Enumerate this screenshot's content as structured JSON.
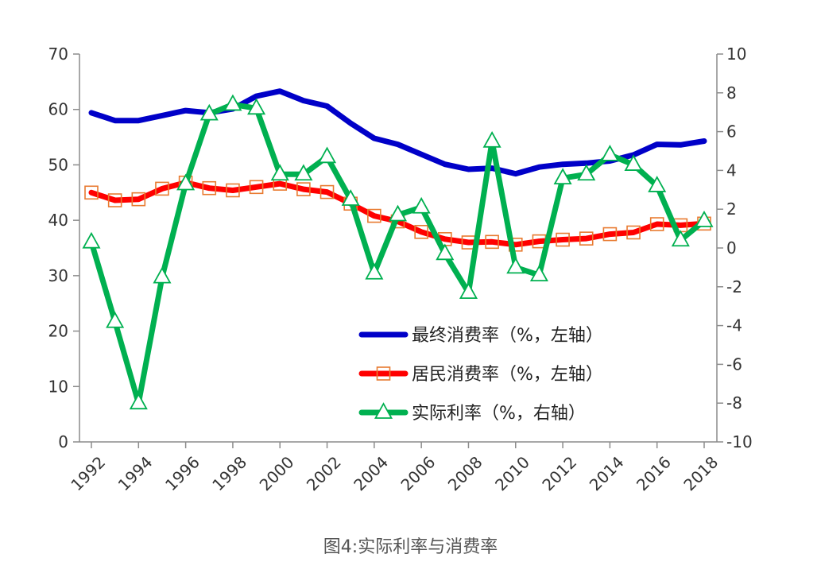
{
  "caption": "图4:实际利率与消费率",
  "chart_data": {
    "type": "line",
    "x": [
      1992,
      1993,
      1994,
      1995,
      1996,
      1997,
      1998,
      1999,
      2000,
      2001,
      2002,
      2003,
      2004,
      2005,
      2006,
      2007,
      2008,
      2009,
      2010,
      2011,
      2012,
      2013,
      2014,
      2015,
      2016,
      2017,
      2018
    ],
    "x_tick_labels": [
      "1992",
      "1994",
      "1996",
      "1998",
      "2000",
      "2002",
      "2004",
      "2006",
      "2008",
      "2010",
      "2012",
      "2014",
      "2016",
      "2018"
    ],
    "y_left": {
      "min": 0,
      "max": 70,
      "ticks": [
        "0",
        "10",
        "20",
        "30",
        "40",
        "50",
        "60",
        "70"
      ]
    },
    "y_right": {
      "min": -10,
      "max": 10,
      "ticks": [
        "-10",
        "-8",
        "-6",
        "-4",
        "-2",
        "0",
        "2",
        "4",
        "6",
        "8",
        "10"
      ]
    },
    "series": [
      {
        "name": "最终消费率（%，左轴）",
        "axis": "left",
        "color": "#0000c8",
        "marker": "none",
        "values": [
          59.4,
          58.0,
          58.0,
          58.9,
          59.8,
          59.4,
          60.1,
          62.4,
          63.3,
          61.6,
          60.6,
          57.5,
          54.8,
          53.7,
          51.9,
          50.1,
          49.2,
          49.4,
          48.4,
          49.6,
          50.1,
          50.3,
          50.7,
          51.8,
          53.7,
          53.6,
          54.3
        ]
      },
      {
        "name": "居民消费率（%，左轴）",
        "axis": "left",
        "color": "#ff0000",
        "marker": "square",
        "marker_color": "#e87a30",
        "values": [
          45.0,
          43.6,
          43.8,
          45.7,
          46.8,
          45.8,
          45.4,
          46.0,
          46.6,
          45.6,
          45.1,
          43.0,
          40.8,
          39.8,
          37.9,
          36.6,
          36.0,
          36.1,
          35.6,
          36.2,
          36.5,
          36.7,
          37.5,
          37.8,
          39.3,
          39.1,
          39.4
        ]
      },
      {
        "name": "实际利率（%，右轴）",
        "axis": "right",
        "color": "#00b050",
        "marker": "triangle",
        "values": [
          0.3,
          -3.8,
          -8.0,
          -1.5,
          3.3,
          6.9,
          7.4,
          7.2,
          3.8,
          3.8,
          4.7,
          2.5,
          -1.3,
          1.7,
          2.1,
          -0.3,
          -2.3,
          5.5,
          -1.0,
          -1.4,
          3.6,
          3.8,
          4.8,
          4.3,
          3.2,
          0.4,
          1.4
        ]
      }
    ]
  }
}
